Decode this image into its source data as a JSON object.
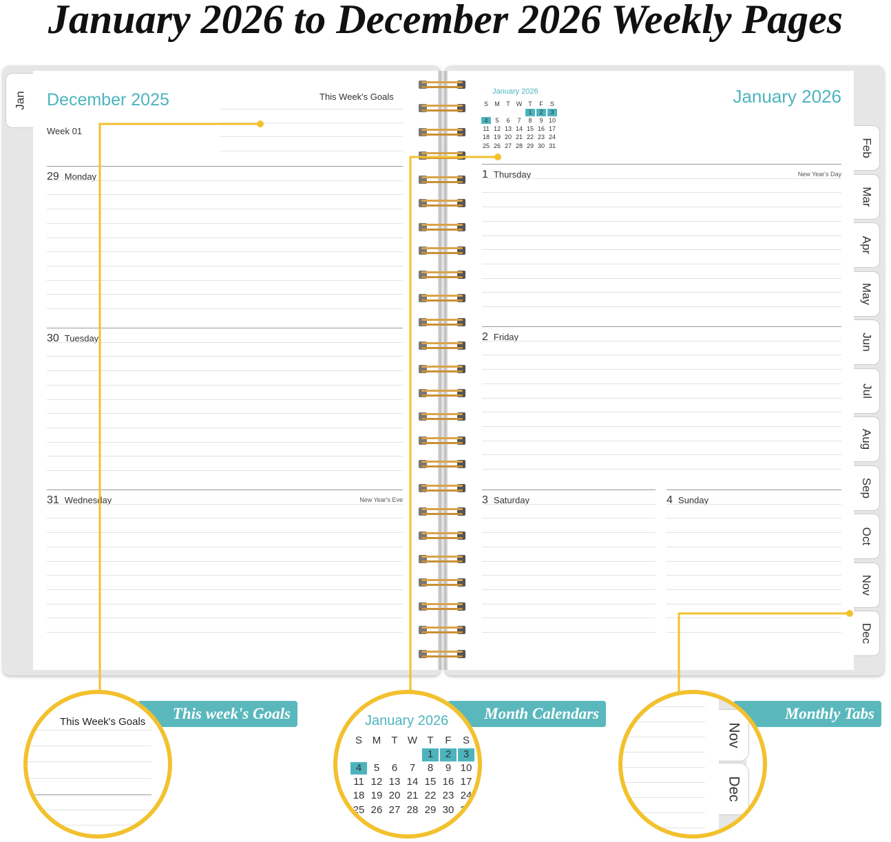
{
  "title": "January 2026 to December 2026 Weekly Pages",
  "left_page": {
    "tab": "Jan",
    "month": "December 2025",
    "goals_label": "This Week's Goals",
    "week": "Week 01",
    "days": [
      {
        "num": "29",
        "name": "Monday",
        "note": ""
      },
      {
        "num": "30",
        "name": "Tuesday",
        "note": ""
      },
      {
        "num": "31",
        "name": "Wednesday",
        "note": "New Year's Eve"
      }
    ]
  },
  "right_page": {
    "month": "January 2026",
    "mini_calendar": {
      "title": "January 2026",
      "weekdays": [
        "S",
        "M",
        "T",
        "W",
        "T",
        "F",
        "S"
      ],
      "weeks": [
        [
          "",
          "",
          "",
          "",
          "1",
          "2",
          "3"
        ],
        [
          "4",
          "5",
          "6",
          "7",
          "8",
          "9",
          "10"
        ],
        [
          "11",
          "12",
          "13",
          "14",
          "15",
          "16",
          "17"
        ],
        [
          "18",
          "19",
          "20",
          "21",
          "22",
          "23",
          "24"
        ],
        [
          "25",
          "26",
          "27",
          "28",
          "29",
          "30",
          "31"
        ]
      ],
      "highlighted": [
        "1",
        "2",
        "3",
        "4"
      ]
    },
    "days": [
      {
        "num": "1",
        "name": "Thursday",
        "note": "New Year's Day"
      },
      {
        "num": "2",
        "name": "Friday",
        "note": ""
      },
      {
        "num": "3",
        "name": "Saturday",
        "note": ""
      },
      {
        "num": "4",
        "name": "Sunday",
        "note": ""
      }
    ],
    "tabs": [
      "Feb",
      "Mar",
      "Apr",
      "May",
      "Jun",
      "Jul",
      "Aug",
      "Sep",
      "Oct",
      "Nov",
      "Dec"
    ]
  },
  "callouts": [
    {
      "label": "This week's Goals",
      "zoom_text": "This Week's Goals"
    },
    {
      "label": "Month Calendars"
    },
    {
      "label": "Monthly Tabs",
      "zoom_tabs": [
        "Nov",
        "Dec"
      ]
    }
  ],
  "colors": {
    "accent": "#4db4bd",
    "callout": "#f2c12e"
  }
}
